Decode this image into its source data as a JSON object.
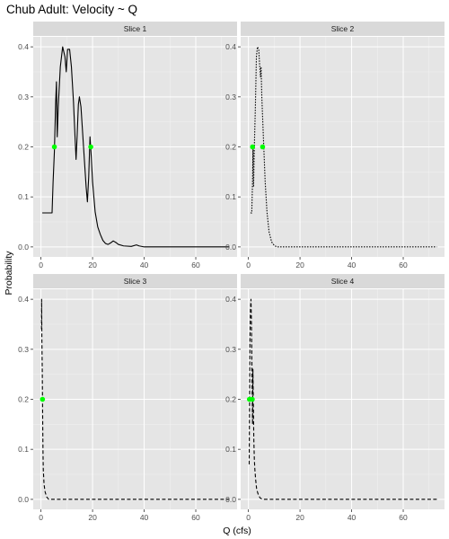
{
  "chart_data": {
    "type": "line",
    "title": "Chub Adult: Velocity ~ Q",
    "xlabel": "Q (cfs)",
    "ylabel": "Probability",
    "xlim": [
      -3,
      76
    ],
    "ylim": [
      -0.02,
      0.42
    ],
    "x_ticks": [
      0,
      20,
      40,
      60
    ],
    "y_ticks": [
      0.0,
      0.1,
      0.2,
      0.3,
      0.4
    ],
    "x_tick_labels": [
      "0",
      "20",
      "40",
      "60"
    ],
    "y_tick_labels": [
      "0.0",
      "0.1",
      "0.2",
      "0.3",
      "0.4"
    ],
    "grid": true,
    "background": "#e5e5e5",
    "strip_color": "#d9d9d9",
    "line_color": "#000000",
    "point_color": "#00ff00",
    "panels": [
      {
        "strip": "Slice 1",
        "line_style": "solid",
        "points": [
          [
            0.5,
            0.068
          ],
          [
            4.3,
            0.068
          ],
          [
            4.7,
            0.13
          ],
          [
            5.2,
            0.19
          ],
          [
            5.7,
            0.29
          ],
          [
            6.0,
            0.33
          ],
          [
            6.3,
            0.22
          ],
          [
            6.7,
            0.28
          ],
          [
            7.5,
            0.36
          ],
          [
            8.4,
            0.4
          ],
          [
            9.3,
            0.38
          ],
          [
            9.8,
            0.35
          ],
          [
            10.3,
            0.395
          ],
          [
            11.1,
            0.395
          ],
          [
            11.8,
            0.36
          ],
          [
            12.6,
            0.29
          ],
          [
            13.2,
            0.22
          ],
          [
            13.6,
            0.175
          ],
          [
            14.0,
            0.22
          ],
          [
            14.5,
            0.285
          ],
          [
            14.9,
            0.3
          ],
          [
            15.5,
            0.28
          ],
          [
            16.5,
            0.2
          ],
          [
            17.5,
            0.12
          ],
          [
            18.0,
            0.09
          ],
          [
            18.5,
            0.14
          ],
          [
            19.0,
            0.22
          ],
          [
            19.5,
            0.18
          ],
          [
            20.0,
            0.13
          ],
          [
            21.0,
            0.07
          ],
          [
            22.0,
            0.04
          ],
          [
            23.0,
            0.025
          ],
          [
            24.0,
            0.013
          ],
          [
            25.0,
            0.007
          ],
          [
            26.0,
            0.005
          ],
          [
            27.0,
            0.008
          ],
          [
            28.0,
            0.012
          ],
          [
            29.0,
            0.009
          ],
          [
            30.0,
            0.005
          ],
          [
            32.0,
            0.002
          ],
          [
            35.0,
            0.001
          ],
          [
            37.0,
            0.004
          ],
          [
            38.0,
            0.002
          ],
          [
            40.0,
            0.0
          ],
          [
            73.0,
            0.0
          ]
        ],
        "markers": [
          [
            5.2,
            0.2
          ],
          [
            19.3,
            0.2
          ]
        ]
      },
      {
        "strip": "Slice 2",
        "line_style": "dotted",
        "points": [
          [
            0.8,
            0.068
          ],
          [
            1.3,
            0.068
          ],
          [
            1.6,
            0.13
          ],
          [
            1.8,
            0.2
          ],
          [
            2.0,
            0.12
          ],
          [
            2.3,
            0.2
          ],
          [
            2.7,
            0.28
          ],
          [
            3.1,
            0.38
          ],
          [
            3.5,
            0.4
          ],
          [
            4.0,
            0.395
          ],
          [
            4.4,
            0.36
          ],
          [
            4.7,
            0.34
          ],
          [
            4.9,
            0.36
          ],
          [
            5.2,
            0.3
          ],
          [
            5.8,
            0.22
          ],
          [
            6.5,
            0.13
          ],
          [
            7.2,
            0.07
          ],
          [
            8.0,
            0.03
          ],
          [
            9.0,
            0.01
          ],
          [
            10.0,
            0.003
          ],
          [
            11.0,
            0.0
          ],
          [
            73.0,
            0.0
          ]
        ],
        "markers": [
          [
            1.6,
            0.2
          ],
          [
            5.5,
            0.2
          ]
        ]
      },
      {
        "strip": "Slice 3",
        "line_style": "dashed",
        "points": [
          [
            0.2,
            0.34
          ],
          [
            0.25,
            0.4
          ],
          [
            0.3,
            0.36
          ],
          [
            0.35,
            0.32
          ],
          [
            0.4,
            0.3
          ],
          [
            0.5,
            0.26
          ],
          [
            0.6,
            0.2
          ],
          [
            0.7,
            0.14
          ],
          [
            0.8,
            0.09
          ],
          [
            0.9,
            0.06
          ],
          [
            1.0,
            0.05
          ],
          [
            1.2,
            0.03
          ],
          [
            1.6,
            0.015
          ],
          [
            2.2,
            0.005
          ],
          [
            3.0,
            0.0
          ],
          [
            73.0,
            0.0
          ]
        ],
        "markers": [
          [
            0.6,
            0.2
          ]
        ]
      },
      {
        "strip": "Slice 4",
        "line_style": "dashed",
        "points": [
          [
            0.3,
            0.07
          ],
          [
            0.45,
            0.2
          ],
          [
            0.6,
            0.32
          ],
          [
            0.8,
            0.38
          ],
          [
            1.0,
            0.4
          ],
          [
            1.15,
            0.36
          ],
          [
            1.3,
            0.3
          ],
          [
            1.45,
            0.22
          ],
          [
            1.6,
            0.15
          ],
          [
            1.75,
            0.26
          ],
          [
            1.9,
            0.2
          ],
          [
            2.1,
            0.12
          ],
          [
            2.3,
            0.08
          ],
          [
            2.5,
            0.06
          ],
          [
            2.8,
            0.04
          ],
          [
            3.2,
            0.02
          ],
          [
            3.8,
            0.01
          ],
          [
            4.5,
            0.003
          ],
          [
            5.5,
            0.0
          ],
          [
            73.0,
            0.0
          ]
        ],
        "markers": [
          [
            0.4,
            0.2
          ],
          [
            1.5,
            0.2
          ]
        ]
      }
    ]
  }
}
